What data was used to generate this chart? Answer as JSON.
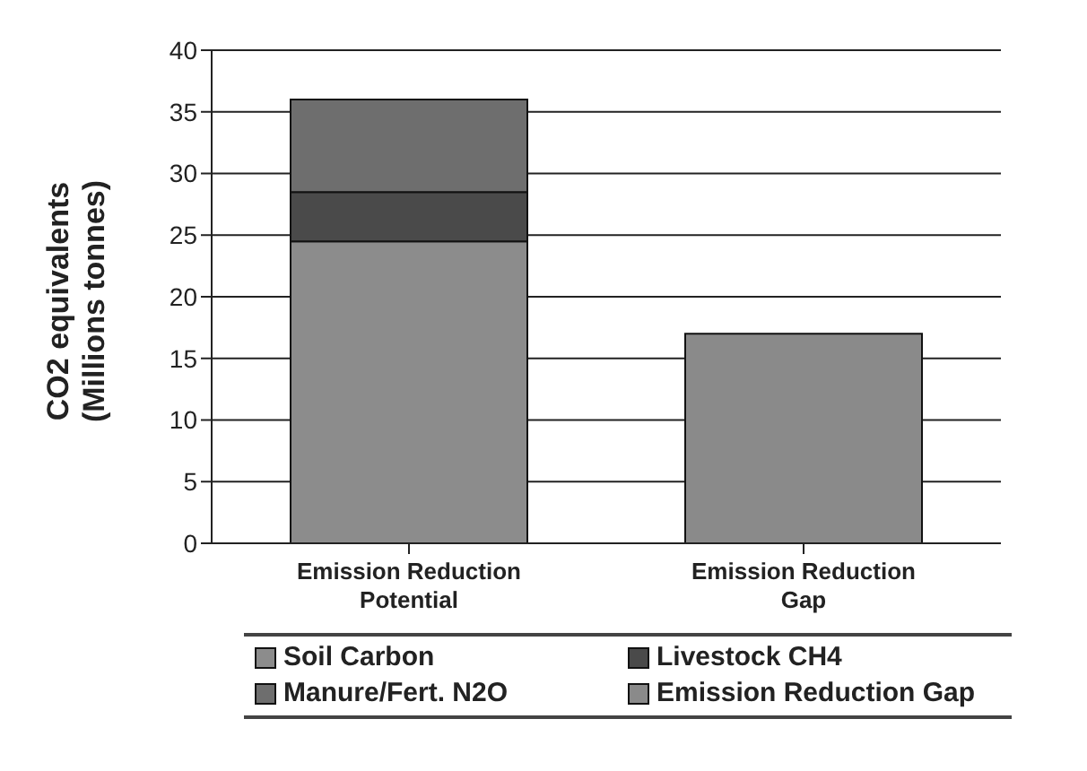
{
  "chart_data": {
    "type": "bar",
    "stacked": true,
    "ylabel": "CO2 equivalents (Millions tonnes)",
    "categories": [
      "Emission Reduction Potential",
      "Emission Reduction Gap"
    ],
    "series": [
      {
        "name": "Soil Carbon",
        "color": "#8c8c8c",
        "values": [
          24.5,
          null
        ]
      },
      {
        "name": "Livestock CH4",
        "color": "#4a4a4a",
        "values": [
          4,
          null
        ]
      },
      {
        "name": "Manure/Fert. N2O",
        "color": "#6e6e6e",
        "values": [
          7.5,
          null
        ]
      },
      {
        "name": "Emission Reduction Gap",
        "color": "#8a8a8a",
        "values": [
          null,
          17
        ]
      }
    ],
    "ylim": [
      0,
      40
    ],
    "yticks": [
      0,
      5,
      10,
      15,
      20,
      25,
      30,
      35,
      40
    ],
    "grid": "y",
    "legend": "bottom"
  }
}
